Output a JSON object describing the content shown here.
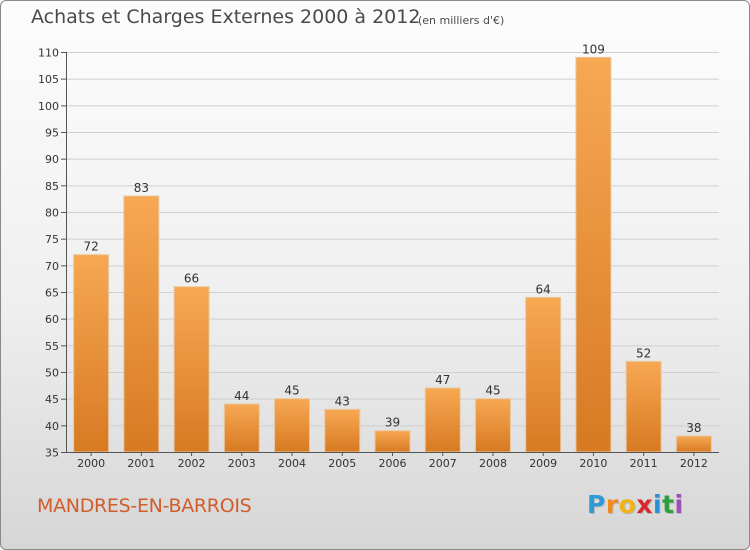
{
  "title": "Achats et Charges Externes 2000 à 2012",
  "unit": "(en milliers d'€)",
  "place": "MANDRES-EN-BARROIS",
  "logo": {
    "letters": [
      "P",
      "r",
      "o",
      "x",
      "i",
      "t",
      "i"
    ],
    "colors": [
      "#2f9ad8",
      "#f18a1c",
      "#f3b21a",
      "#d9272e",
      "#2c8fd6",
      "#2e9e3f",
      "#9e4fb6"
    ]
  },
  "colors": {
    "bar_top": "#f7a853",
    "bar_bottom": "#d77a22",
    "title": "#4a4a4a",
    "place": "#d15d2b"
  },
  "chart_data": {
    "type": "bar",
    "categories": [
      "2000",
      "2001",
      "2002",
      "2003",
      "2004",
      "2005",
      "2006",
      "2007",
      "2008",
      "2009",
      "2010",
      "2011",
      "2012"
    ],
    "values": [
      72,
      83,
      66,
      44,
      45,
      43,
      39,
      47,
      45,
      64,
      109,
      52,
      38
    ],
    "ylim": [
      35,
      110
    ],
    "yticks": [
      35,
      40,
      45,
      50,
      55,
      60,
      65,
      70,
      75,
      80,
      85,
      90,
      95,
      100,
      105,
      110
    ],
    "grid": true
  }
}
